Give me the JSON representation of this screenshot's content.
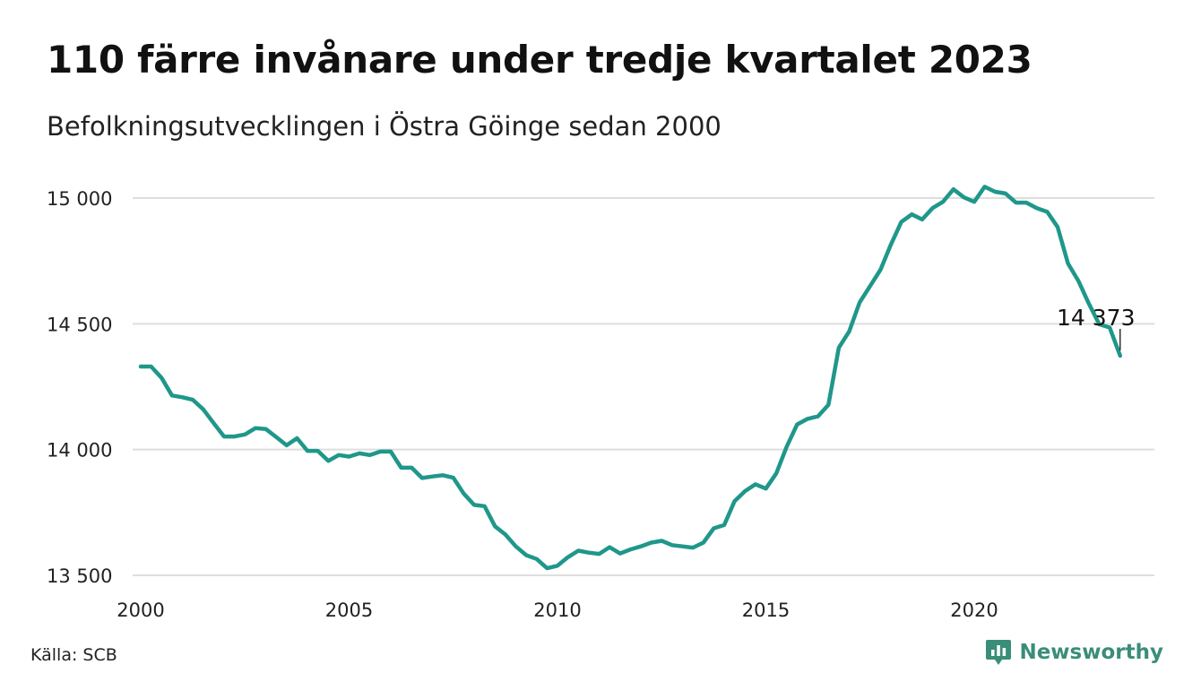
{
  "title": "110 färre invånare under tredje kvartalet 2023",
  "subtitle": "Befolkningsutvecklingen i Östra Göinge sedan 2000",
  "source": "Källa: SCB",
  "brand": {
    "name": "Newsworthy",
    "icon": "newsworthy-logo-icon",
    "color": "#3a8d79"
  },
  "chart_data": {
    "type": "line",
    "x_start": 2000.0,
    "x_step": 0.25,
    "ylim": [
      13500,
      15000
    ],
    "xlim": [
      2000,
      2024.5
    ],
    "yticks": [
      {
        "value": 13500,
        "label": "13 500"
      },
      {
        "value": 14000,
        "label": "14 000"
      },
      {
        "value": 14500,
        "label": "14 500"
      },
      {
        "value": 15000,
        "label": "15 000"
      }
    ],
    "xticks": [
      {
        "value": 2000,
        "label": "2000"
      },
      {
        "value": 2005,
        "label": "2005"
      },
      {
        "value": 2010,
        "label": "2010"
      },
      {
        "value": 2015,
        "label": "2015"
      },
      {
        "value": 2020,
        "label": "2020"
      }
    ],
    "grid": true,
    "line_color": "#1f978a",
    "values": [
      14330,
      14330,
      14285,
      14215,
      14208,
      14198,
      14160,
      14105,
      14052,
      14052,
      14060,
      14085,
      14082,
      14050,
      14017,
      14045,
      13995,
      13995,
      13955,
      13978,
      13972,
      13985,
      13978,
      13992,
      13992,
      13928,
      13928,
      13887,
      13893,
      13898,
      13888,
      13825,
      13780,
      13775,
      13695,
      13662,
      13615,
      13580,
      13565,
      13528,
      13538,
      13572,
      13598,
      13590,
      13585,
      13612,
      13587,
      13603,
      13615,
      13630,
      13637,
      13620,
      13615,
      13610,
      13630,
      13687,
      13700,
      13795,
      13835,
      13862,
      13845,
      13905,
      14012,
      14100,
      14122,
      14132,
      14178,
      14405,
      14470,
      14585,
      14650,
      14715,
      14815,
      14905,
      14935,
      14915,
      14960,
      14985,
      15035,
      15003,
      14985,
      15045,
      15025,
      15018,
      14982,
      14982,
      14960,
      14945,
      14885,
      14740,
      14670,
      14580,
      14498,
      14485,
      14373
    ],
    "annotation": {
      "label": "14 373",
      "value": 14373
    }
  }
}
